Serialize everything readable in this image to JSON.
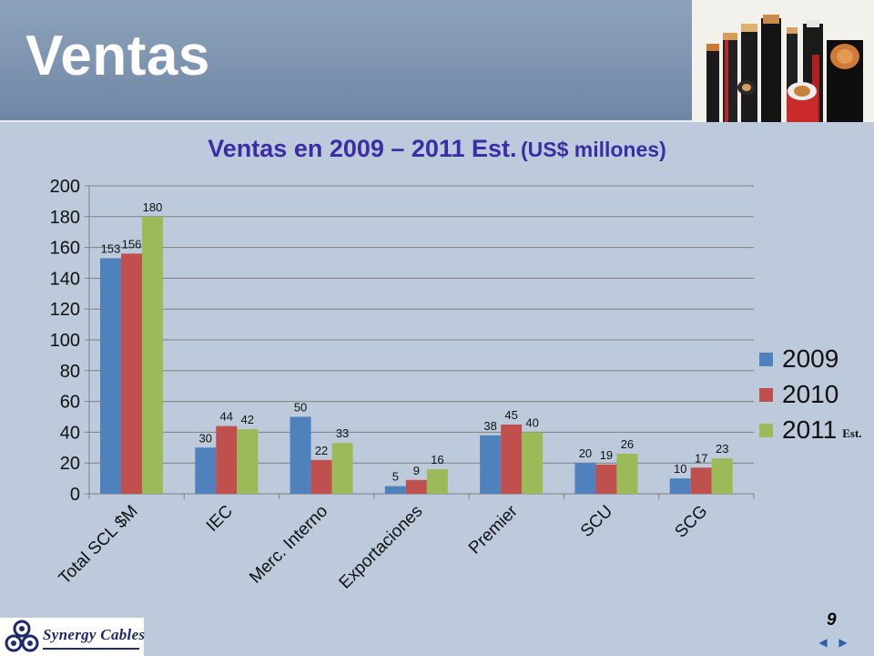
{
  "slide": {
    "title": "Ventas",
    "page_number": "9"
  },
  "chart_title": {
    "main": "Ventas en 2009 – 2011 Est.",
    "unit": "(US$ millones)"
  },
  "logo": {
    "text": "Synergy Cables"
  },
  "colors": {
    "series_2009": "#4f81bd",
    "series_2010": "#c0504d",
    "series_2011": "#9bbb59",
    "title": "#3a2da5"
  },
  "icons": {
    "prev": "triangle-left-icon",
    "next": "triangle-right-icon"
  },
  "chart_data": {
    "type": "bar",
    "title": "Ventas en 2009 – 2011 Est. (US$ millones)",
    "categories": [
      "Total SCL $M",
      "IEC",
      "Merc. Interno",
      "Exportaciones",
      "Premier",
      "SCU",
      "SCG"
    ],
    "series": [
      {
        "name": "2009",
        "values": [
          153,
          30,
          50,
          5,
          38,
          20,
          10
        ]
      },
      {
        "name": "2010",
        "values": [
          156,
          44,
          22,
          9,
          45,
          19,
          17
        ]
      },
      {
        "name": "2011",
        "note": "Est.",
        "values": [
          180,
          42,
          33,
          16,
          40,
          26,
          23
        ]
      }
    ],
    "ylim": [
      0,
      200
    ],
    "yticks": [
      0,
      20,
      40,
      60,
      80,
      100,
      120,
      140,
      160,
      180,
      200
    ],
    "grid": true,
    "legend": "right"
  }
}
